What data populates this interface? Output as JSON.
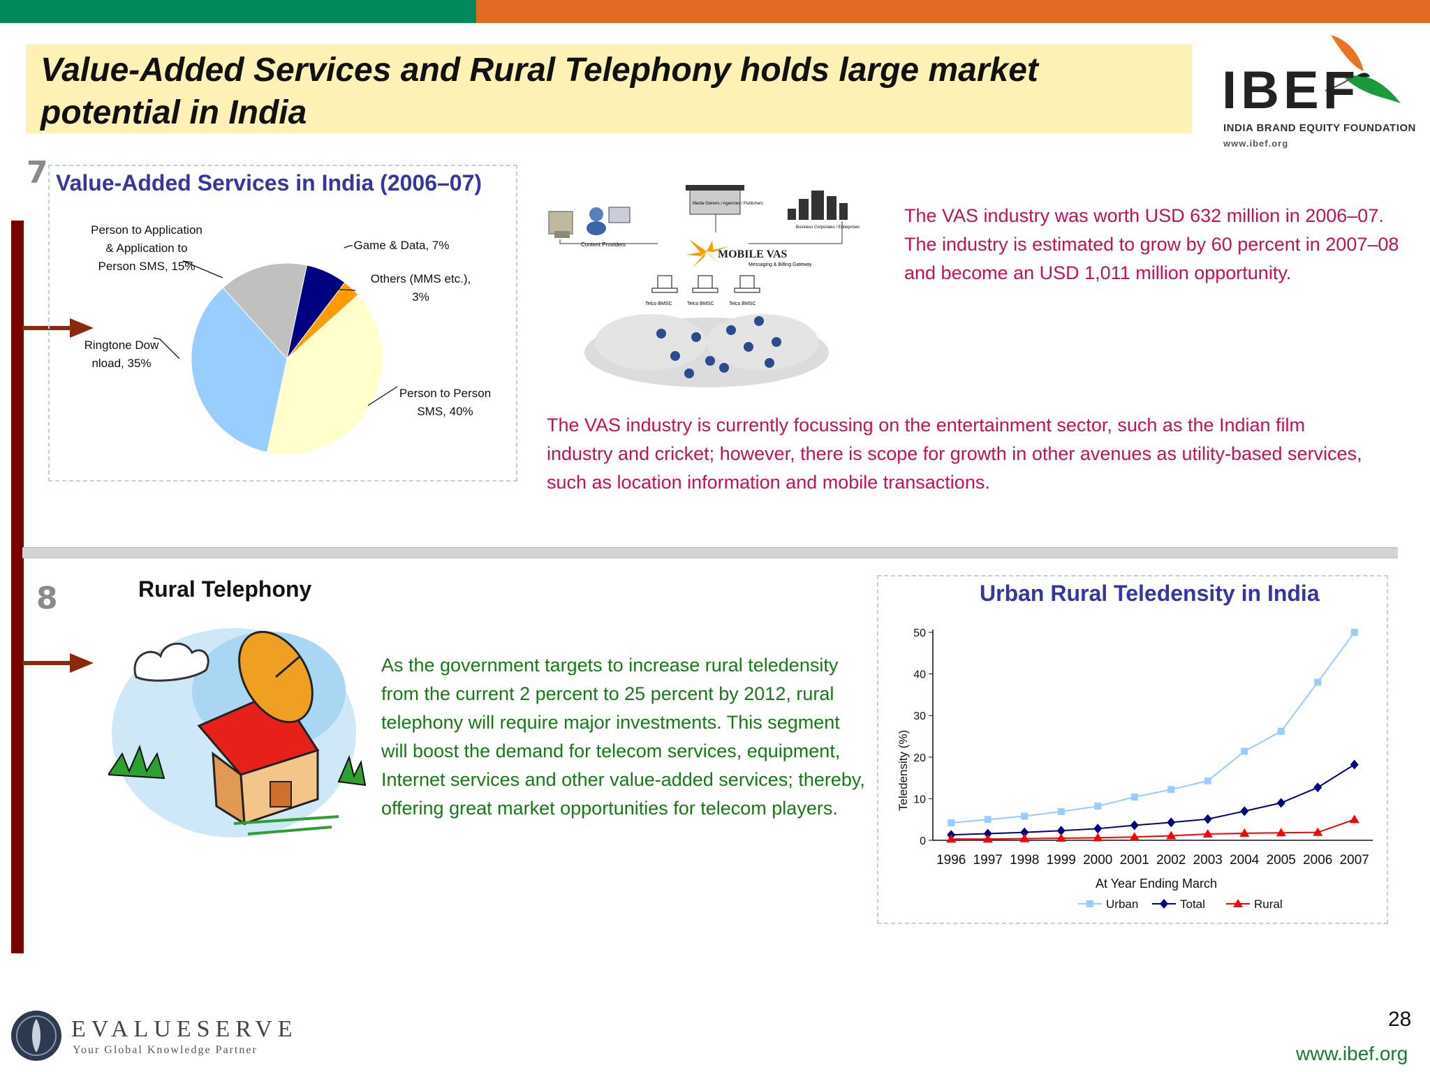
{
  "header": {
    "title": "Value-Added Services and Rural Telephony holds large market potential in India",
    "colors": {
      "green": "#00895a",
      "orange": "#e06a22",
      "title_bg": "#fdf1b5"
    }
  },
  "logo": {
    "name": "IBEF",
    "tagline": "INDIA BRAND EQUITY FOUNDATION",
    "url": "www.ibef.org"
  },
  "section_vas": {
    "number": "7",
    "chart_title": "Value-Added Services in India (2006–07)",
    "text1": "The VAS industry was worth USD 632 million in 2006–07. The industry is estimated to grow by 60 percent in 2007–08 and become an USD 1,011 million opportunity.",
    "text2": "The VAS industry is currently focussing on the entertainment sector, such as the Indian film industry and cricket; however, there is scope for growth in other avenues as utility-based services, such as location information and mobile transactions.",
    "diagram": {
      "center": "MOBILE VAS",
      "gateway": "Messaging & Billing Gateway",
      "content_providers": "Content Providers",
      "media": "Media Owners / Agencies / Publishers",
      "business": "Business Corporates / Enterprises",
      "msc": [
        "Telco BMSC",
        "Telco BMSC",
        "Telco BMSC"
      ]
    }
  },
  "section_rural": {
    "number": "8",
    "heading": "Rural Telephony",
    "text": "As the government targets to increase rural teledensity from the current 2 percent to 25 percent by 2012, rural telephony will require major investments. This segment will boost the demand for telecom services, equipment, Internet services and other value-added services; thereby, offering great market opportunities for telecom players."
  },
  "chart_data": [
    {
      "type": "pie",
      "title": "Value-Added Services in India (2006–07)",
      "slices": [
        {
          "label": "Game & Data, 7%",
          "value": 7,
          "color": "#000080"
        },
        {
          "label": "Others (MMS etc.), 3%",
          "value": 3,
          "color": "#ff9c00"
        },
        {
          "label": "Person to Person SMS, 40%",
          "value": 40,
          "color": "#ffffcc"
        },
        {
          "label": "Ringtone Dow nload, 35%",
          "value": 35,
          "color": "#99ccff"
        },
        {
          "label": "Person to Application & Application to Person SMS, 15%",
          "value": 15,
          "color": "#c0c0c0"
        }
      ]
    },
    {
      "type": "line",
      "title": "Urban Rural Teledensity in India",
      "xlabel": "At Year Ending March",
      "ylabel": "Teledensity (%)",
      "ylim": [
        0,
        50
      ],
      "yticks": [
        "0",
        "10",
        "20",
        "30",
        "40",
        "50"
      ],
      "categories": [
        "1996",
        "1997",
        "1998",
        "1999",
        "2000",
        "2001",
        "2002",
        "2003",
        "2004",
        "2005",
        "2006",
        "2007"
      ],
      "legend_position": "bottom",
      "series": [
        {
          "name": "Urban",
          "color": "#99ccff",
          "marker": "square",
          "values": [
            4.2,
            5.0,
            5.8,
            6.9,
            8.2,
            10.4,
            12.2,
            14.3,
            21.4,
            26.2,
            38.0,
            50.0
          ]
        },
        {
          "name": "Total",
          "color": "#000080",
          "marker": "diamond",
          "values": [
            1.3,
            1.6,
            1.9,
            2.3,
            2.8,
            3.6,
            4.3,
            5.1,
            7.0,
            9.0,
            12.7,
            18.2
          ]
        },
        {
          "name": "Rural",
          "color": "#ff0000",
          "marker": "triangle",
          "values": [
            0.3,
            0.3,
            0.4,
            0.5,
            0.6,
            0.8,
            1.1,
            1.5,
            1.7,
            1.8,
            1.9,
            5.0
          ]
        }
      ]
    }
  ],
  "footer": {
    "brand": "EVALUESERVE",
    "tagline": "Your Global Knowledge Partner",
    "page": "28",
    "url": "www.ibef.org"
  }
}
